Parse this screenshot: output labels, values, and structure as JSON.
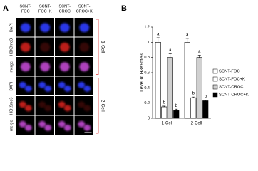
{
  "panel_a": {
    "label": "A",
    "columns": [
      [
        "SCNT-",
        "FOC"
      ],
      [
        "SCNT-",
        "FOC+K"
      ],
      [
        "SCNT-",
        "CROC"
      ],
      [
        "SCNT-",
        "CROC+K"
      ]
    ],
    "stains": [
      "DAPI",
      "H3K9me3",
      "merge"
    ],
    "groups": [
      "1-Cell",
      "2-Cell"
    ]
  },
  "panel_b": {
    "label": "B"
  },
  "chart_data": {
    "type": "bar",
    "y_label": "Level of H3K9me3",
    "categories": [
      "1-Cell",
      "2-Cell"
    ],
    "series": [
      {
        "name": "SCNT-FOC",
        "color": "#ffffff",
        "values": [
          1.0,
          1.0
        ],
        "errors": [
          0.06,
          0.05
        ],
        "significance": [
          "a",
          "a"
        ]
      },
      {
        "name": "SCNT-FOC+K",
        "color": "#ffffff",
        "values": [
          0.15,
          0.27
        ],
        "errors": [
          0.01,
          0.01
        ],
        "significance": [
          "b",
          "b"
        ]
      },
      {
        "name": "SCNT-CROC",
        "color": "#d0d0d0",
        "values": [
          0.8,
          0.8
        ],
        "errors": [
          0.05,
          0.03
        ],
        "significance": [
          "a",
          "a"
        ]
      },
      {
        "name": "SCNT-CROC+K",
        "color": "#000000",
        "values": [
          0.1,
          0.23
        ],
        "errors": [
          0.02,
          0.01
        ],
        "significance": [
          "b",
          "b"
        ]
      }
    ],
    "ylim": [
      0,
      1.2
    ],
    "yticks": [
      0,
      0.2,
      0.4,
      0.6,
      0.8,
      1,
      1.2
    ],
    "legend": "right"
  }
}
